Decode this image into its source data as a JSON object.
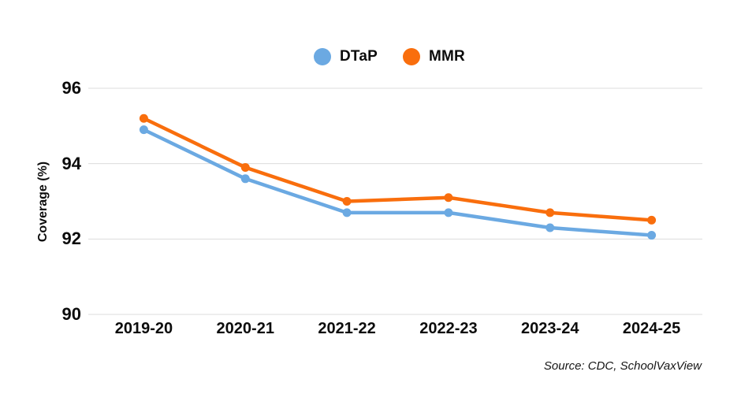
{
  "source_note": "Source: CDC, SchoolVaxView",
  "colors": {
    "dtap": "#6BA9E2",
    "mmr": "#F96E0D",
    "gridline": "#dcdcdc",
    "text": "#0c0c0c"
  },
  "chart_data": {
    "type": "line",
    "categories": [
      "2019-20",
      "2020-21",
      "2021-22",
      "2022-23",
      "2023-24",
      "2024-25"
    ],
    "series": [
      {
        "name": "DTaP",
        "color": "#6BA9E2",
        "values": [
          94.9,
          93.6,
          92.7,
          92.7,
          92.3,
          92.1
        ]
      },
      {
        "name": "MMR",
        "color": "#F96E0D",
        "values": [
          95.2,
          93.9,
          93.0,
          93.1,
          92.7,
          92.5
        ]
      }
    ],
    "title": "",
    "xlabel": "",
    "ylabel": "Coverage (%)",
    "ylim": [
      90,
      96
    ],
    "yticks": [
      96,
      94,
      92,
      90
    ],
    "grid": true,
    "legend_position": "top-center",
    "markers": true
  }
}
